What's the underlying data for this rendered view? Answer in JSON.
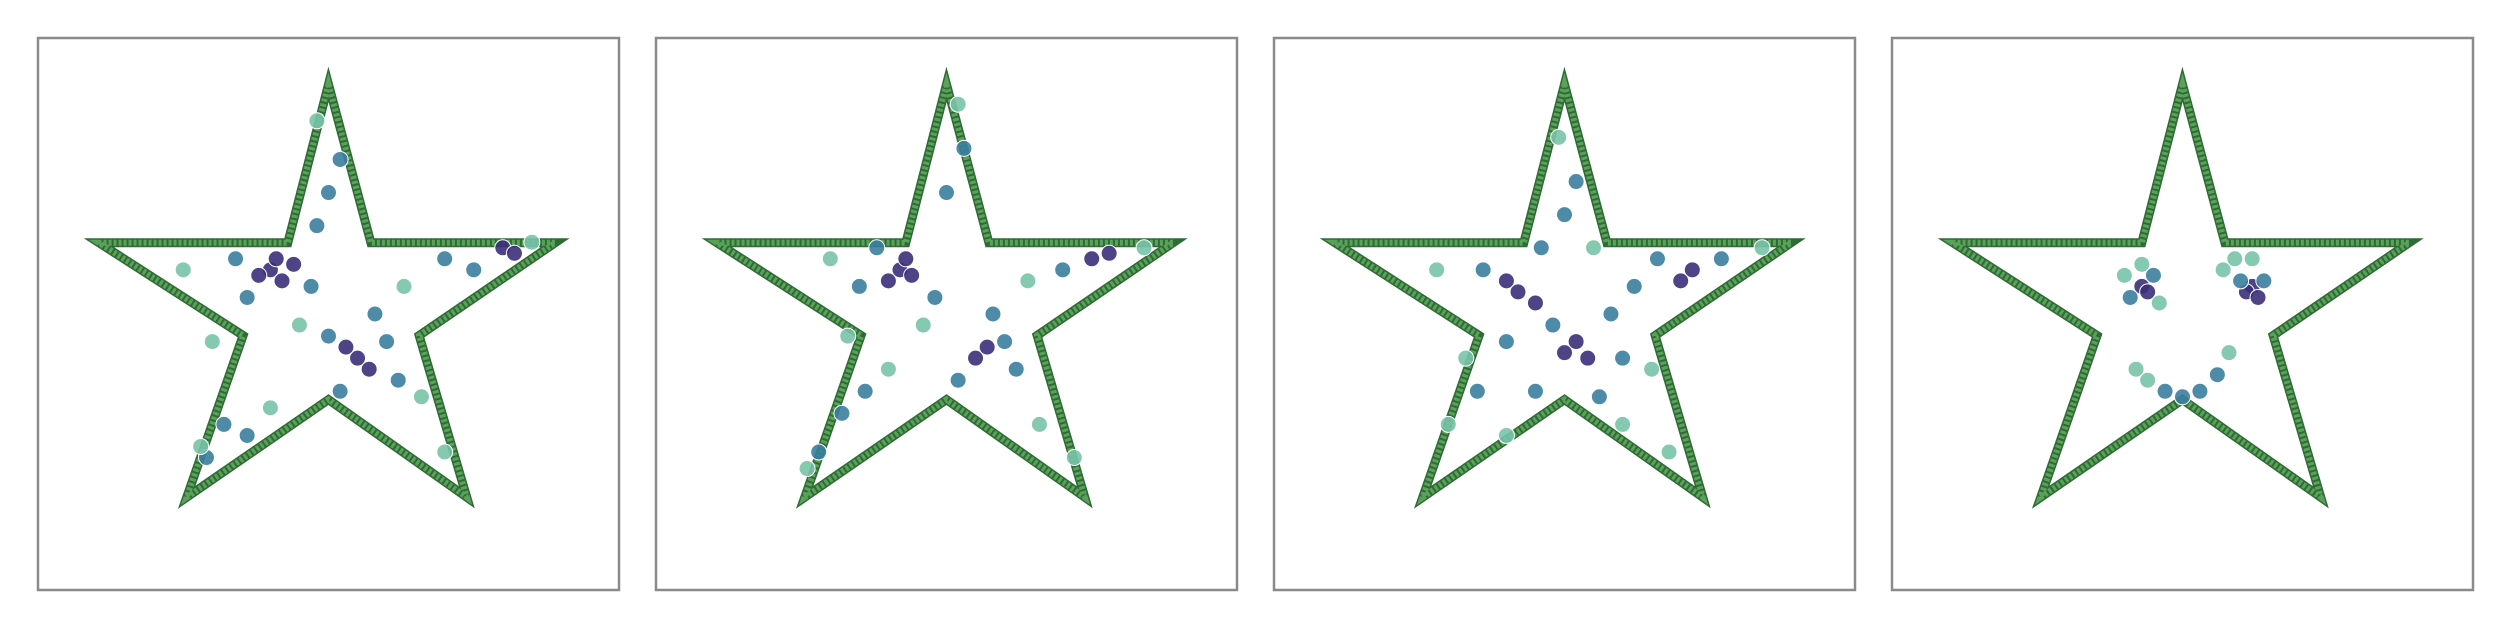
{
  "chart_data": [
    {
      "type": "scatter",
      "xlim": [
        0,
        1
      ],
      "ylim": [
        0,
        1
      ],
      "series": [
        {
          "color": "#5aa25a",
          "outline": true,
          "x": [
            0.5,
            0.573,
            0.89,
            0.656,
            0.738,
            0.5,
            0.256,
            0.353,
            0.105,
            0.43
          ],
          "y": [
            0.916,
            0.629,
            0.629,
            0.461,
            0.168,
            0.345,
            0.168,
            0.461,
            0.629,
            0.629
          ]
        },
        {
          "color": "#3b2f7a",
          "x": [
            0.4,
            0.42,
            0.38,
            0.44,
            0.55,
            0.57,
            0.53,
            0.8,
            0.82,
            0.41
          ],
          "y": [
            0.58,
            0.56,
            0.57,
            0.59,
            0.42,
            0.4,
            0.44,
            0.62,
            0.61,
            0.6
          ]
        },
        {
          "color": "#3a7ea0",
          "x": [
            0.34,
            0.47,
            0.36,
            0.5,
            0.52,
            0.48,
            0.6,
            0.5,
            0.62,
            0.75,
            0.7,
            0.32,
            0.36,
            0.29,
            0.58,
            0.52
          ],
          "y": [
            0.6,
            0.55,
            0.53,
            0.72,
            0.78,
            0.66,
            0.45,
            0.46,
            0.38,
            0.58,
            0.6,
            0.3,
            0.28,
            0.24,
            0.5,
            0.36
          ]
        },
        {
          "color": "#78c3a8",
          "x": [
            0.25,
            0.28,
            0.4,
            0.63,
            0.48,
            0.66,
            0.3,
            0.85,
            0.7,
            0.45
          ],
          "y": [
            0.58,
            0.26,
            0.33,
            0.55,
            0.85,
            0.35,
            0.45,
            0.63,
            0.25,
            0.48
          ]
        }
      ]
    },
    {
      "type": "scatter",
      "xlim": [
        0,
        1
      ],
      "ylim": [
        0,
        1
      ],
      "series": [
        {
          "color": "#5aa25a",
          "outline": true,
          "x": [
            0.5,
            0.573,
            0.89,
            0.656,
            0.738,
            0.5,
            0.256,
            0.353,
            0.105,
            0.43
          ],
          "y": [
            0.916,
            0.629,
            0.629,
            0.461,
            0.168,
            0.345,
            0.168,
            0.461,
            0.629,
            0.629
          ]
        },
        {
          "color": "#3b2f7a",
          "x": [
            0.42,
            0.4,
            0.44,
            0.55,
            0.57,
            0.75,
            0.78,
            0.43
          ],
          "y": [
            0.58,
            0.56,
            0.57,
            0.42,
            0.44,
            0.6,
            0.61,
            0.6
          ]
        },
        {
          "color": "#3a7ea0",
          "x": [
            0.38,
            0.48,
            0.35,
            0.5,
            0.53,
            0.6,
            0.62,
            0.52,
            0.7,
            0.32,
            0.28,
            0.36,
            0.58
          ],
          "y": [
            0.62,
            0.53,
            0.55,
            0.72,
            0.8,
            0.45,
            0.4,
            0.38,
            0.58,
            0.32,
            0.25,
            0.36,
            0.5
          ]
        },
        {
          "color": "#78c3a8",
          "x": [
            0.3,
            0.26,
            0.4,
            0.64,
            0.52,
            0.66,
            0.33,
            0.84,
            0.72,
            0.46
          ],
          "y": [
            0.6,
            0.22,
            0.4,
            0.56,
            0.88,
            0.3,
            0.46,
            0.62,
            0.24,
            0.48
          ]
        }
      ]
    },
    {
      "type": "scatter",
      "xlim": [
        0,
        1
      ],
      "ylim": [
        0,
        1
      ],
      "series": [
        {
          "color": "#5aa25a",
          "outline": true,
          "x": [
            0.5,
            0.573,
            0.89,
            0.656,
            0.738,
            0.5,
            0.256,
            0.353,
            0.105,
            0.43
          ],
          "y": [
            0.916,
            0.629,
            0.629,
            0.461,
            0.168,
            0.345,
            0.168,
            0.461,
            0.629,
            0.629
          ]
        },
        {
          "color": "#3b2f7a",
          "x": [
            0.4,
            0.42,
            0.52,
            0.54,
            0.5,
            0.72,
            0.7,
            0.45
          ],
          "y": [
            0.56,
            0.54,
            0.45,
            0.42,
            0.43,
            0.58,
            0.56,
            0.52
          ]
        },
        {
          "color": "#3a7ea0",
          "x": [
            0.36,
            0.46,
            0.48,
            0.58,
            0.6,
            0.4,
            0.5,
            0.52,
            0.66,
            0.77,
            0.35,
            0.45,
            0.56,
            0.62
          ],
          "y": [
            0.58,
            0.62,
            0.48,
            0.5,
            0.42,
            0.45,
            0.68,
            0.74,
            0.6,
            0.6,
            0.36,
            0.36,
            0.35,
            0.55
          ]
        },
        {
          "color": "#78c3a8",
          "x": [
            0.28,
            0.3,
            0.33,
            0.65,
            0.49,
            0.84,
            0.68,
            0.4,
            0.6,
            0.55
          ],
          "y": [
            0.58,
            0.3,
            0.42,
            0.4,
            0.82,
            0.62,
            0.25,
            0.28,
            0.3,
            0.62
          ]
        }
      ]
    },
    {
      "type": "scatter",
      "xlim": [
        0,
        1
      ],
      "ylim": [
        0,
        1
      ],
      "series": [
        {
          "color": "#5aa25a",
          "outline": true,
          "x": [
            0.5,
            0.573,
            0.89,
            0.656,
            0.738,
            0.5,
            0.256,
            0.353,
            0.105,
            0.43
          ],
          "y": [
            0.916,
            0.629,
            0.629,
            0.461,
            0.168,
            0.345,
            0.168,
            0.461,
            0.629,
            0.629
          ]
        },
        {
          "color": "#3b2f7a",
          "x": [
            0.43,
            0.44,
            0.62,
            0.61,
            0.63
          ],
          "y": [
            0.55,
            0.54,
            0.55,
            0.54,
            0.53
          ]
        },
        {
          "color": "#3a7ea0",
          "x": [
            0.41,
            0.45,
            0.6,
            0.64,
            0.47,
            0.5,
            0.53,
            0.56
          ],
          "y": [
            0.53,
            0.57,
            0.56,
            0.56,
            0.36,
            0.35,
            0.36,
            0.39
          ]
        },
        {
          "color": "#78c3a8",
          "x": [
            0.4,
            0.43,
            0.46,
            0.57,
            0.59,
            0.62,
            0.58,
            0.44,
            0.42
          ],
          "y": [
            0.57,
            0.59,
            0.52,
            0.58,
            0.6,
            0.6,
            0.43,
            0.38,
            0.4
          ]
        }
      ]
    }
  ]
}
